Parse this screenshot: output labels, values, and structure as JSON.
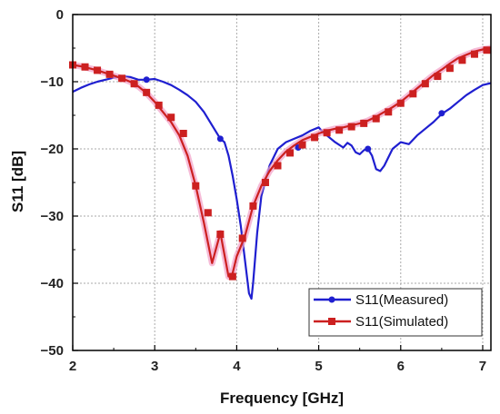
{
  "chart_data": {
    "type": "line",
    "xlabel": "Frequency   [GHz]",
    "ylabel": "S11   [dB]",
    "xlim": [
      2,
      7.1
    ],
    "ylim": [
      -50,
      0
    ],
    "xticks": [
      2,
      3,
      4,
      5,
      6,
      7
    ],
    "yticks": [
      0,
      -10,
      -20,
      -30,
      -40,
      -50
    ],
    "xtick_labels": [
      "2",
      "3",
      "4",
      "5",
      "6",
      "7"
    ],
    "ytick_labels": [
      "0",
      "−10",
      "−20",
      "−30",
      "−40",
      "−50"
    ],
    "grid": true,
    "legend_position": "bottom-right",
    "series": [
      {
        "name": "S11(Measured)",
        "color": "#1f1fd0",
        "marker": "circle",
        "x": [
          2.0,
          2.1,
          2.2,
          2.3,
          2.4,
          2.5,
          2.6,
          2.7,
          2.8,
          2.9,
          3.0,
          3.1,
          3.2,
          3.3,
          3.4,
          3.5,
          3.6,
          3.7,
          3.8,
          3.85,
          3.9,
          3.95,
          4.0,
          4.05,
          4.1,
          4.15,
          4.18,
          4.2,
          4.25,
          4.3,
          4.4,
          4.5,
          4.6,
          4.7,
          4.8,
          4.9,
          5.0,
          5.05,
          5.1,
          5.2,
          5.3,
          5.35,
          5.4,
          5.45,
          5.5,
          5.55,
          5.6,
          5.65,
          5.7,
          5.75,
          5.8,
          5.9,
          6.0,
          6.1,
          6.2,
          6.3,
          6.4,
          6.5,
          6.6,
          6.7,
          6.8,
          6.9,
          7.0,
          7.1
        ],
        "y": [
          -11.5,
          -10.9,
          -10.4,
          -10.0,
          -9.7,
          -9.4,
          -9.2,
          -9.3,
          -9.7,
          -9.7,
          -9.6,
          -10.0,
          -10.5,
          -11.2,
          -12.0,
          -13.0,
          -14.5,
          -16.5,
          -18.5,
          -19.0,
          -21.0,
          -24.0,
          -27.5,
          -31.5,
          -36.5,
          -41.5,
          -42.3,
          -40.0,
          -32.5,
          -27.0,
          -22.5,
          -20.0,
          -19.0,
          -18.5,
          -18.0,
          -17.3,
          -16.8,
          -17.5,
          -18.0,
          -19.0,
          -19.8,
          -19.1,
          -19.5,
          -20.5,
          -20.8,
          -20.2,
          -20.0,
          -21.0,
          -23.0,
          -23.3,
          -22.5,
          -20.0,
          -19.0,
          -19.3,
          -18.0,
          -17.0,
          -16.0,
          -14.8,
          -14.0,
          -13.0,
          -12.0,
          -11.2,
          -10.5,
          -10.2
        ]
      },
      {
        "name": "S11(Simulated)",
        "color": "#cc2020",
        "marker": "square",
        "x": [
          2.0,
          2.1,
          2.2,
          2.3,
          2.4,
          2.5,
          2.6,
          2.7,
          2.8,
          2.9,
          3.0,
          3.1,
          3.2,
          3.3,
          3.4,
          3.5,
          3.6,
          3.7,
          3.8,
          3.9,
          3.95,
          4.0,
          4.1,
          4.2,
          4.3,
          4.4,
          4.5,
          4.6,
          4.7,
          4.8,
          4.9,
          5.0,
          5.1,
          5.2,
          5.3,
          5.4,
          5.5,
          5.6,
          5.7,
          5.8,
          5.9,
          6.0,
          6.1,
          6.2,
          6.3,
          6.4,
          6.5,
          6.6,
          6.7,
          6.8,
          6.9,
          7.0,
          7.1
        ],
        "y": [
          -7.5,
          -7.7,
          -8.0,
          -8.3,
          -8.7,
          -9.1,
          -9.5,
          -10.0,
          -10.7,
          -11.7,
          -13.0,
          -14.5,
          -16.0,
          -18.0,
          -21.0,
          -25.5,
          -31.0,
          -37.0,
          -32.5,
          -39.0,
          -38.5,
          -36.0,
          -33.0,
          -28.5,
          -25.5,
          -23.3,
          -21.7,
          -20.4,
          -19.5,
          -18.7,
          -18.2,
          -17.7,
          -17.3,
          -17.0,
          -16.8,
          -16.5,
          -16.2,
          -15.8,
          -15.2,
          -14.5,
          -13.8,
          -13.0,
          -12.0,
          -11.0,
          -10.0,
          -9.0,
          -8.2,
          -7.3,
          -6.5,
          -6.0,
          -5.5,
          -5.2,
          -5.0
        ]
      }
    ],
    "marker_points": {
      "measured": [
        [
          2.9,
          -9.7
        ],
        [
          3.8,
          -18.5
        ],
        [
          4.75,
          -19.8
        ],
        [
          5.6,
          -20.0
        ],
        [
          6.5,
          -14.7
        ]
      ],
      "simulated": [
        [
          2.0,
          -7.5
        ],
        [
          2.15,
          -7.8
        ],
        [
          2.3,
          -8.3
        ],
        [
          2.45,
          -8.9
        ],
        [
          2.6,
          -9.5
        ],
        [
          2.75,
          -10.3
        ],
        [
          2.9,
          -11.6
        ],
        [
          3.05,
          -13.5
        ],
        [
          3.2,
          -15.3
        ],
        [
          3.35,
          -17.7
        ],
        [
          3.5,
          -25.5
        ],
        [
          3.65,
          -29.5
        ],
        [
          3.8,
          -32.7
        ],
        [
          3.95,
          -39.0
        ],
        [
          4.07,
          -33.3
        ],
        [
          4.2,
          -28.5
        ],
        [
          4.35,
          -25.0
        ],
        [
          4.5,
          -22.5
        ],
        [
          4.65,
          -20.6
        ],
        [
          4.8,
          -19.4
        ],
        [
          4.95,
          -18.3
        ],
        [
          5.1,
          -17.6
        ],
        [
          5.25,
          -17.2
        ],
        [
          5.4,
          -16.7
        ],
        [
          5.55,
          -16.2
        ],
        [
          5.7,
          -15.5
        ],
        [
          5.85,
          -14.5
        ],
        [
          6.0,
          -13.2
        ],
        [
          6.15,
          -11.8
        ],
        [
          6.3,
          -10.3
        ],
        [
          6.45,
          -9.2
        ],
        [
          6.6,
          -8.0
        ],
        [
          6.75,
          -6.8
        ],
        [
          6.9,
          -5.9
        ],
        [
          7.05,
          -5.3
        ]
      ]
    }
  }
}
